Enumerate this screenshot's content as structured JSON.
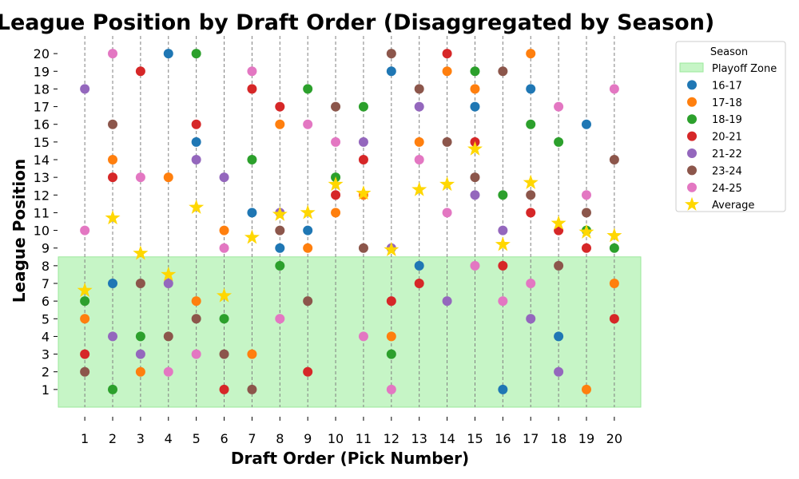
{
  "chart_data": {
    "type": "scatter",
    "title": "League Position by Draft Order (Disaggregated by Season)",
    "xlabel": "Draft Order (Pick Number)",
    "ylabel": "League Position",
    "xlim": [
      0.05,
      20.95
    ],
    "ylim": [
      0.0,
      21.0
    ],
    "x_ticks": [
      1,
      2,
      3,
      4,
      5,
      6,
      7,
      8,
      9,
      10,
      11,
      12,
      13,
      14,
      15,
      16,
      17,
      18,
      19,
      20
    ],
    "y_ticks": [
      1,
      2,
      3,
      4,
      5,
      6,
      7,
      8,
      9,
      10,
      11,
      12,
      13,
      14,
      15,
      16,
      17,
      18,
      19,
      20
    ],
    "vertical_gridlines": "dashed at each pick",
    "playoff_zone": {
      "label": "Playoff Zone",
      "y_from": 0,
      "y_to": 8.5,
      "color": "#c6f5c6"
    },
    "legend": {
      "title": "Season",
      "placement": "outside right, top"
    },
    "series": [
      {
        "name": "16-17",
        "color": "#1f77b4",
        "x": [
          2,
          4,
          5,
          7,
          8,
          9,
          12,
          13,
          15,
          16,
          17,
          18,
          19
        ],
        "y": [
          7,
          20,
          15,
          11,
          9,
          10,
          19,
          8,
          17,
          1,
          18,
          4,
          16
        ]
      },
      {
        "name": "17-18",
        "color": "#ff7f0e",
        "x": [
          1,
          2,
          3,
          4,
          5,
          6,
          7,
          8,
          9,
          10,
          11,
          12,
          13,
          14,
          15,
          17,
          19,
          20
        ],
        "y": [
          5,
          14,
          2,
          13,
          6,
          10,
          3,
          16,
          9,
          11,
          12,
          4,
          15,
          19,
          18,
          20,
          1,
          7
        ]
      },
      {
        "name": "18-19",
        "color": "#2ca02c",
        "x": [
          1,
          2,
          3,
          5,
          6,
          7,
          8,
          9,
          10,
          11,
          12,
          15,
          16,
          17,
          18,
          19,
          20
        ],
        "y": [
          6,
          1,
          4,
          20,
          5,
          14,
          8,
          18,
          13,
          17,
          3,
          19,
          12,
          16,
          15,
          10,
          9
        ]
      },
      {
        "name": "20-21",
        "color": "#d62728",
        "x": [
          1,
          2,
          3,
          5,
          6,
          7,
          8,
          9,
          10,
          11,
          12,
          13,
          14,
          15,
          16,
          17,
          18,
          19,
          20
        ],
        "y": [
          3,
          13,
          19,
          16,
          1,
          18,
          17,
          2,
          12,
          14,
          6,
          7,
          20,
          15,
          8,
          11,
          10,
          9,
          5
        ]
      },
      {
        "name": "21-22",
        "color": "#9467bd",
        "x": [
          1,
          2,
          3,
          4,
          5,
          6,
          8,
          11,
          12,
          13,
          14,
          15,
          16,
          17,
          18
        ],
        "y": [
          18,
          4,
          3,
          7,
          14,
          13,
          11,
          15,
          9,
          17,
          6,
          12,
          10,
          5,
          2
        ]
      },
      {
        "name": "23-24",
        "color": "#8c564b",
        "x": [
          1,
          2,
          3,
          4,
          5,
          6,
          7,
          8,
          9,
          10,
          11,
          12,
          13,
          14,
          15,
          16,
          17,
          18,
          19,
          20
        ],
        "y": [
          2,
          16,
          7,
          4,
          5,
          3,
          1,
          10,
          6,
          17,
          9,
          20,
          18,
          15,
          13,
          19,
          12,
          8,
          11,
          14
        ]
      },
      {
        "name": "24-25",
        "color": "#e377c2",
        "x": [
          1,
          2,
          3,
          4,
          5,
          6,
          7,
          8,
          9,
          10,
          11,
          12,
          13,
          14,
          15,
          16,
          17,
          18,
          19,
          20
        ],
        "y": [
          10,
          20,
          13,
          2,
          3,
          9,
          19,
          5,
          16,
          15,
          4,
          1,
          14,
          11,
          8,
          6,
          7,
          17,
          12,
          18
        ]
      },
      {
        "name": "Average",
        "color": "#ffd700",
        "marker": "star",
        "x": [
          1,
          2,
          3,
          4,
          5,
          6,
          7,
          8,
          9,
          10,
          11,
          12,
          13,
          14,
          15,
          16,
          17,
          18,
          19,
          20
        ],
        "y": [
          6.6,
          10.7,
          8.7,
          7.5,
          11.3,
          6.3,
          9.6,
          10.9,
          11.0,
          12.6,
          12.1,
          8.9,
          12.3,
          12.6,
          14.6,
          9.2,
          12.7,
          10.4,
          9.9,
          9.7
        ]
      }
    ]
  }
}
